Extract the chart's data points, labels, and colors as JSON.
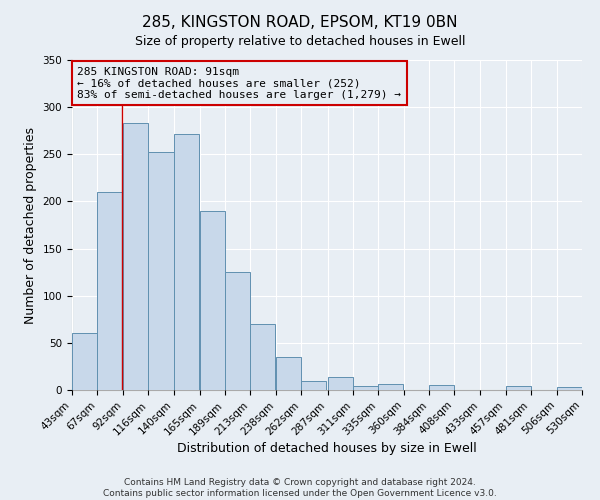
{
  "title": "285, KINGSTON ROAD, EPSOM, KT19 0BN",
  "subtitle": "Size of property relative to detached houses in Ewell",
  "xlabel": "Distribution of detached houses by size in Ewell",
  "ylabel": "Number of detached properties",
  "bar_left_edges": [
    43,
    67,
    92,
    116,
    140,
    165,
    189,
    213,
    238,
    262,
    287,
    311,
    335,
    360,
    384,
    408,
    433,
    457,
    481,
    506
  ],
  "bar_heights": [
    60,
    210,
    283,
    252,
    271,
    190,
    125,
    70,
    35,
    10,
    14,
    4,
    6,
    0,
    5,
    0,
    0,
    4,
    0,
    3
  ],
  "bin_width": 24,
  "tick_labels": [
    "43sqm",
    "67sqm",
    "92sqm",
    "116sqm",
    "140sqm",
    "165sqm",
    "189sqm",
    "213sqm",
    "238sqm",
    "262sqm",
    "287sqm",
    "311sqm",
    "335sqm",
    "360sqm",
    "384sqm",
    "408sqm",
    "433sqm",
    "457sqm",
    "481sqm",
    "506sqm",
    "530sqm"
  ],
  "bar_color": "#c8d8ea",
  "bar_edge_color": "#6090b0",
  "property_line_x": 91,
  "property_line_color": "#cc0000",
  "annotation_line1": "285 KINGSTON ROAD: 91sqm",
  "annotation_line2": "← 16% of detached houses are smaller (252)",
  "annotation_line3": "83% of semi-detached houses are larger (1,279) →",
  "annotation_box_color": "#cc0000",
  "ylim": [
    0,
    350
  ],
  "xlim": [
    43,
    530
  ],
  "yticks": [
    0,
    50,
    100,
    150,
    200,
    250,
    300,
    350
  ],
  "footer1": "Contains HM Land Registry data © Crown copyright and database right 2024.",
  "footer2": "Contains public sector information licensed under the Open Government Licence v3.0.",
  "figure_bg_color": "#e8eef4",
  "axes_bg_color": "#e8eef4",
  "grid_color": "#ffffff",
  "title_fontsize": 11,
  "axis_label_fontsize": 9,
  "tick_fontsize": 7.5,
  "footer_fontsize": 6.5
}
